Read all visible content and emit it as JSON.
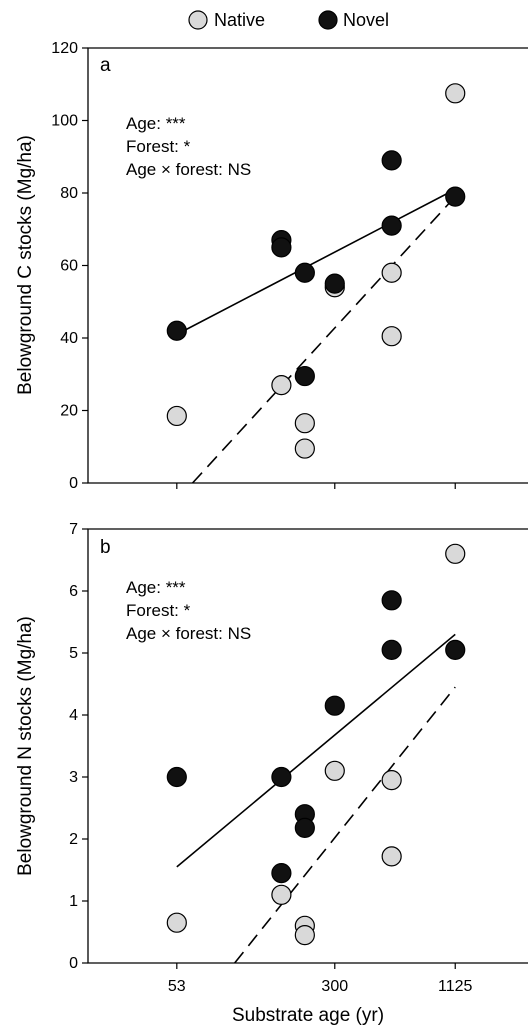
{
  "legend": [
    {
      "label": "Native",
      "color": "#d9d9d9"
    },
    {
      "label": "Novel",
      "color": "#111111"
    }
  ],
  "xlabel": "Substrate age (yr)",
  "x_ticks": [
    53,
    300,
    1125
  ],
  "x_scale": "log",
  "chart_data": [
    {
      "type": "scatter",
      "panel": "a",
      "ylabel": "Belowground C stocks (Mg/ha)",
      "ylim": [
        0,
        120
      ],
      "y_ticks": [
        0,
        20,
        40,
        60,
        80,
        100,
        120
      ],
      "xlim": [
        20,
        2500
      ],
      "annotations": [
        "Age: ***",
        "Forest: *",
        "Age × forest: NS"
      ],
      "series": [
        {
          "name": "Native",
          "color": "#d9d9d9",
          "points": [
            [
              53,
              18.5
            ],
            [
              167,
              27
            ],
            [
              216,
              16.5
            ],
            [
              216,
              9.5
            ],
            [
              300,
              54
            ],
            [
              560,
              58
            ],
            [
              560,
              40.5
            ],
            [
              1125,
              107.5
            ]
          ],
          "fit": {
            "style": "dashed",
            "from": [
              63,
              0
            ],
            "to": [
              1125,
              79
            ]
          }
        },
        {
          "name": "Novel",
          "color": "#111111",
          "points": [
            [
              53,
              42
            ],
            [
              167,
              67
            ],
            [
              167,
              65
            ],
            [
              216,
              58
            ],
            [
              216,
              29.5
            ],
            [
              300,
              55
            ],
            [
              560,
              89
            ],
            [
              560,
              71
            ],
            [
              1125,
              79
            ]
          ],
          "fit": {
            "style": "solid",
            "from": [
              53,
              41
            ],
            "to": [
              1125,
              81
            ]
          }
        }
      ]
    },
    {
      "type": "scatter",
      "panel": "b",
      "ylabel": "Belowground N stocks (Mg/ha)",
      "ylim": [
        0,
        7
      ],
      "y_ticks": [
        0,
        1,
        2,
        3,
        4,
        5,
        6,
        7
      ],
      "xlim": [
        20,
        2500
      ],
      "annotations": [
        "Age: ***",
        "Forest: *",
        "Age × forest: NS"
      ],
      "series": [
        {
          "name": "Native",
          "color": "#d9d9d9",
          "points": [
            [
              53,
              0.65
            ],
            [
              167,
              1.1
            ],
            [
              216,
              0.6
            ],
            [
              216,
              0.45
            ],
            [
              300,
              3.1
            ],
            [
              560,
              2.95
            ],
            [
              560,
              1.72
            ],
            [
              1125,
              6.6
            ]
          ],
          "fit": {
            "style": "dashed",
            "from": [
              100,
              0
            ],
            "to": [
              1125,
              4.45
            ]
          }
        },
        {
          "name": "Novel",
          "color": "#111111",
          "points": [
            [
              53,
              3.0
            ],
            [
              167,
              3.0
            ],
            [
              167,
              1.45
            ],
            [
              216,
              2.4
            ],
            [
              216,
              2.18
            ],
            [
              300,
              4.15
            ],
            [
              560,
              5.85
            ],
            [
              560,
              5.05
            ],
            [
              1125,
              5.05
            ]
          ],
          "fit": {
            "style": "solid",
            "from": [
              53,
              1.55
            ],
            "to": [
              1125,
              5.3
            ]
          }
        }
      ]
    }
  ]
}
